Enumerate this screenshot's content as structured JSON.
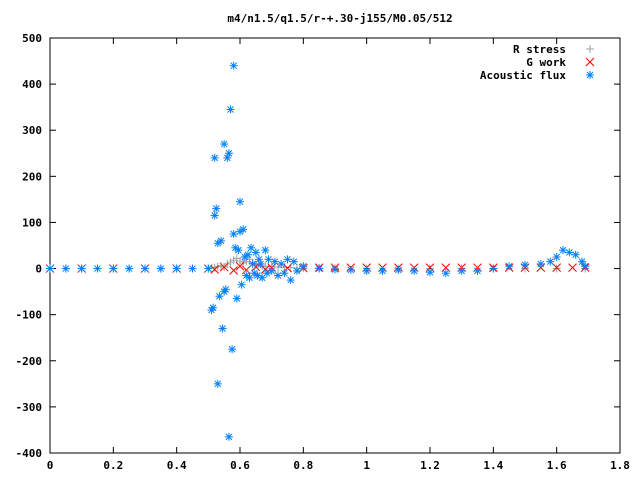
{
  "chart_data": {
    "type": "scatter",
    "title": "m4/n1.5/q1.5/r-+.30-j155/M0.05/512",
    "xlabel": "",
    "ylabel": "",
    "xlim": [
      0,
      1.8
    ],
    "ylim": [
      -400,
      500
    ],
    "x_ticks": [
      0,
      0.2,
      0.4,
      0.6,
      0.8,
      1,
      1.2,
      1.4,
      1.6,
      1.8
    ],
    "x_tick_labels": [
      "0",
      "0.2",
      "0.4",
      "0.6",
      "0.8",
      "1",
      "1.2",
      "1.4",
      "1.6",
      "1.8"
    ],
    "y_ticks": [
      -400,
      -300,
      -200,
      -100,
      0,
      100,
      200,
      300,
      400,
      500
    ],
    "y_tick_labels": [
      "-400",
      "-300",
      "-200",
      "-100",
      "0",
      "100",
      "200",
      "300",
      "400",
      "500"
    ],
    "grid": false,
    "legend_position": "top-right",
    "series": [
      {
        "name": "R stress",
        "marker": "plus",
        "color": "#a0a0a0",
        "points": [
          [
            0.0,
            0
          ],
          [
            0.05,
            0
          ],
          [
            0.1,
            0
          ],
          [
            0.15,
            0
          ],
          [
            0.2,
            0
          ],
          [
            0.25,
            0
          ],
          [
            0.3,
            0
          ],
          [
            0.35,
            0
          ],
          [
            0.4,
            0
          ],
          [
            0.45,
            0
          ],
          [
            0.5,
            0
          ],
          [
            0.52,
            2
          ],
          [
            0.53,
            4
          ],
          [
            0.54,
            6
          ],
          [
            0.55,
            3
          ],
          [
            0.56,
            10
          ],
          [
            0.57,
            14
          ],
          [
            0.58,
            18
          ],
          [
            0.59,
            22
          ],
          [
            0.6,
            16
          ],
          [
            0.61,
            12
          ],
          [
            0.62,
            15
          ],
          [
            0.63,
            20
          ],
          [
            0.64,
            12
          ],
          [
            0.65,
            8
          ],
          [
            0.66,
            10
          ],
          [
            0.67,
            6
          ],
          [
            0.68,
            5
          ],
          [
            0.7,
            4
          ],
          [
            0.72,
            3
          ],
          [
            0.74,
            2
          ],
          [
            0.76,
            2
          ],
          [
            0.78,
            1
          ],
          [
            0.8,
            1
          ],
          [
            0.85,
            1
          ],
          [
            0.9,
            0
          ],
          [
            1.0,
            0
          ],
          [
            1.1,
            0
          ],
          [
            1.2,
            0
          ],
          [
            1.3,
            0
          ],
          [
            1.4,
            0
          ],
          [
            1.5,
            0
          ],
          [
            1.6,
            0
          ],
          [
            1.69,
            0
          ]
        ]
      },
      {
        "name": "G work",
        "marker": "cross",
        "color": "#ff0000",
        "points": [
          [
            0.0,
            0
          ],
          [
            0.1,
            0
          ],
          [
            0.2,
            0
          ],
          [
            0.3,
            0
          ],
          [
            0.4,
            0
          ],
          [
            0.5,
            0
          ],
          [
            0.52,
            -2
          ],
          [
            0.55,
            3
          ],
          [
            0.58,
            -4
          ],
          [
            0.6,
            5
          ],
          [
            0.62,
            -3
          ],
          [
            0.65,
            4
          ],
          [
            0.68,
            -2
          ],
          [
            0.7,
            2
          ],
          [
            0.75,
            1
          ],
          [
            0.8,
            1
          ],
          [
            0.85,
            2
          ],
          [
            0.9,
            2
          ],
          [
            0.95,
            2
          ],
          [
            1.0,
            2
          ],
          [
            1.05,
            2
          ],
          [
            1.1,
            2
          ],
          [
            1.15,
            2
          ],
          [
            1.2,
            2
          ],
          [
            1.25,
            2
          ],
          [
            1.3,
            2
          ],
          [
            1.35,
            2
          ],
          [
            1.4,
            2
          ],
          [
            1.45,
            2
          ],
          [
            1.5,
            2
          ],
          [
            1.55,
            2
          ],
          [
            1.6,
            2
          ],
          [
            1.65,
            2
          ],
          [
            1.69,
            2
          ]
        ]
      },
      {
        "name": "Acoustic flux",
        "marker": "star",
        "color": "#0080ff",
        "points": [
          [
            0.0,
            0
          ],
          [
            0.05,
            0
          ],
          [
            0.1,
            0
          ],
          [
            0.15,
            0
          ],
          [
            0.2,
            0
          ],
          [
            0.25,
            0
          ],
          [
            0.3,
            0
          ],
          [
            0.35,
            0
          ],
          [
            0.4,
            0
          ],
          [
            0.45,
            0
          ],
          [
            0.5,
            0
          ],
          [
            0.51,
            -90
          ],
          [
            0.515,
            -85
          ],
          [
            0.52,
            240
          ],
          [
            0.52,
            115
          ],
          [
            0.525,
            130
          ],
          [
            0.53,
            55
          ],
          [
            0.53,
            -250
          ],
          [
            0.535,
            -60
          ],
          [
            0.54,
            60
          ],
          [
            0.545,
            -130
          ],
          [
            0.55,
            270
          ],
          [
            0.55,
            -50
          ],
          [
            0.555,
            -45
          ],
          [
            0.56,
            240
          ],
          [
            0.565,
            250
          ],
          [
            0.565,
            -365
          ],
          [
            0.57,
            345
          ],
          [
            0.575,
            -175
          ],
          [
            0.58,
            440
          ],
          [
            0.58,
            75
          ],
          [
            0.585,
            45
          ],
          [
            0.59,
            -65
          ],
          [
            0.595,
            40
          ],
          [
            0.6,
            145
          ],
          [
            0.6,
            80
          ],
          [
            0.605,
            -35
          ],
          [
            0.61,
            85
          ],
          [
            0.615,
            25
          ],
          [
            0.62,
            -15
          ],
          [
            0.625,
            30
          ],
          [
            0.63,
            -20
          ],
          [
            0.635,
            45
          ],
          [
            0.64,
            10
          ],
          [
            0.645,
            -10
          ],
          [
            0.65,
            35
          ],
          [
            0.655,
            -15
          ],
          [
            0.66,
            20
          ],
          [
            0.665,
            10
          ],
          [
            0.67,
            -20
          ],
          [
            0.68,
            40
          ],
          [
            0.685,
            -10
          ],
          [
            0.69,
            20
          ],
          [
            0.7,
            -5
          ],
          [
            0.71,
            15
          ],
          [
            0.72,
            -15
          ],
          [
            0.73,
            10
          ],
          [
            0.74,
            -10
          ],
          [
            0.75,
            20
          ],
          [
            0.76,
            -25
          ],
          [
            0.77,
            15
          ],
          [
            0.78,
            -5
          ],
          [
            0.8,
            5
          ],
          [
            0.85,
            0
          ],
          [
            0.9,
            -2
          ],
          [
            0.95,
            -3
          ],
          [
            1.0,
            -5
          ],
          [
            1.05,
            -5
          ],
          [
            1.1,
            -3
          ],
          [
            1.15,
            -5
          ],
          [
            1.2,
            -8
          ],
          [
            1.25,
            -10
          ],
          [
            1.3,
            -5
          ],
          [
            1.35,
            -5
          ],
          [
            1.4,
            0
          ],
          [
            1.45,
            5
          ],
          [
            1.5,
            8
          ],
          [
            1.55,
            10
          ],
          [
            1.58,
            15
          ],
          [
            1.6,
            25
          ],
          [
            1.62,
            40
          ],
          [
            1.64,
            35
          ],
          [
            1.66,
            30
          ],
          [
            1.68,
            15
          ],
          [
            1.69,
            5
          ]
        ]
      }
    ]
  }
}
